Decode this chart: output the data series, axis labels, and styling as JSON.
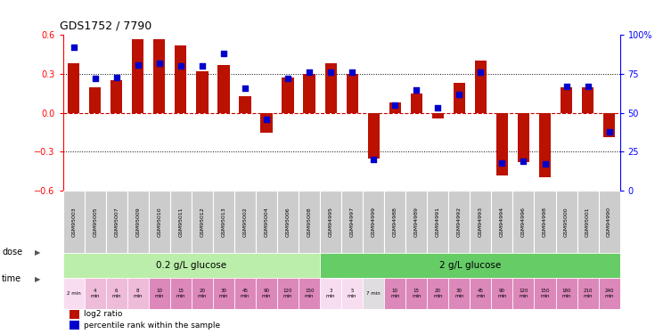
{
  "title": "GDS1752 / 7790",
  "samples": [
    "GSM95003",
    "GSM95005",
    "GSM95007",
    "GSM95009",
    "GSM95010",
    "GSM95011",
    "GSM95012",
    "GSM95013",
    "GSM95002",
    "GSM95004",
    "GSM95006",
    "GSM95008",
    "GSM94995",
    "GSM94997",
    "GSM94999",
    "GSM94988",
    "GSM94989",
    "GSM94991",
    "GSM94992",
    "GSM94993",
    "GSM94994",
    "GSM94996",
    "GSM94998",
    "GSM95000",
    "GSM95001",
    "GSM94990"
  ],
  "log2_ratio": [
    0.38,
    0.2,
    0.25,
    0.57,
    0.57,
    0.52,
    0.32,
    0.37,
    0.13,
    -0.15,
    0.27,
    0.3,
    0.38,
    0.3,
    -0.35,
    0.08,
    0.15,
    -0.04,
    0.23,
    0.4,
    -0.48,
    -0.38,
    -0.5,
    0.2,
    0.2,
    -0.19
  ],
  "percentile": [
    92,
    72,
    73,
    81,
    82,
    80,
    80,
    88,
    66,
    46,
    72,
    76,
    76,
    76,
    20,
    55,
    65,
    53,
    62,
    76,
    18,
    19,
    17,
    67,
    67,
    38
  ],
  "group1_count": 12,
  "group2_count": 14,
  "bar_color": "#bb1100",
  "dot_color": "#0000cc",
  "ylim": [
    -0.6,
    0.6
  ],
  "yticks_left": [
    -0.6,
    -0.3,
    0.0,
    0.3,
    0.6
  ],
  "yticks_right": [
    0,
    25,
    50,
    75,
    100
  ],
  "dose_label1": "0.2 g/L glucose",
  "dose_label2": "2 g/L glucose",
  "dose_color1": "#bbeeaa",
  "dose_color2": "#66cc66",
  "time1_labels": [
    "2 min",
    "4\nmin",
    "6\nmin",
    "8\nmin",
    "10\nmin",
    "15\nmin",
    "20\nmin",
    "30\nmin",
    "45\nmin",
    "90\nmin",
    "120\nmin",
    "150\nmin"
  ],
  "time2_labels": [
    "3\nmin",
    "5\nmin",
    "7 min",
    "10\nmin",
    "15\nmin",
    "20\nmin",
    "30\nmin",
    "45\nmin",
    "90\nmin",
    "120\nmin",
    "150\nmin",
    "180\nmin",
    "210\nmin",
    "240\nmin"
  ],
  "time1_colors": [
    "#f8ddf0",
    "#eebbd8",
    "#eebbd8",
    "#eebbd8",
    "#dd88bb",
    "#dd88bb",
    "#dd88bb",
    "#dd88bb",
    "#dd88bb",
    "#dd88bb",
    "#dd88bb",
    "#dd88bb"
  ],
  "time2_colors": [
    "#f8ddf0",
    "#f8ddf0",
    "#e0dde0",
    "#dd88bb",
    "#dd88bb",
    "#dd88bb",
    "#dd88bb",
    "#dd88bb",
    "#dd88bb",
    "#dd88bb",
    "#dd88bb",
    "#dd88bb",
    "#dd88bb",
    "#dd88bb"
  ],
  "sample_bg_color": "#cccccc",
  "legend_red": "log2 ratio",
  "legend_blue": "percentile rank within the sample"
}
